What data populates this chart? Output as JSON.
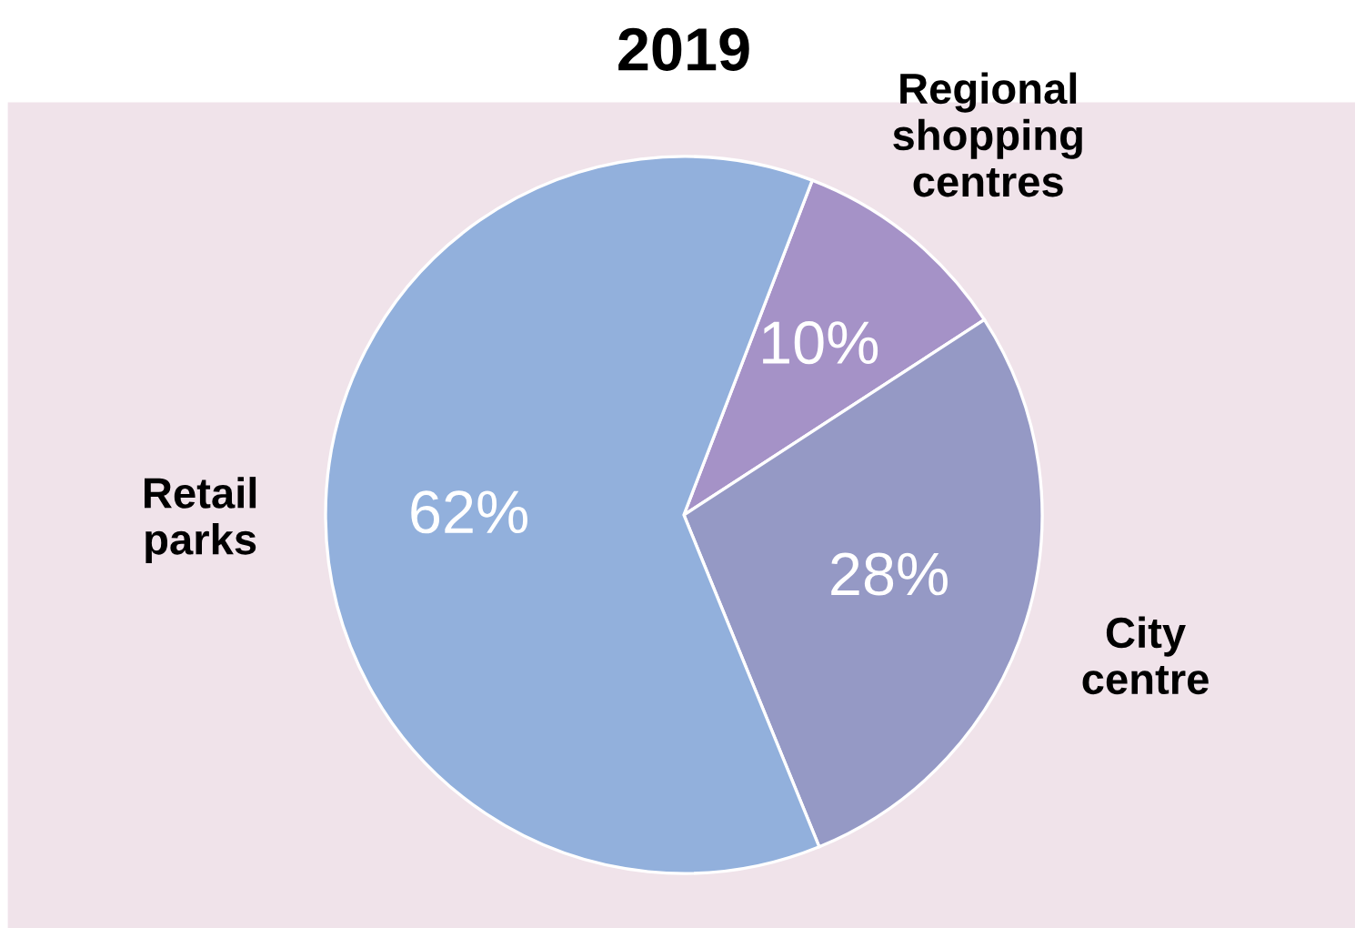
{
  "chart_data": {
    "type": "pie",
    "title": "2019",
    "categories": [
      "Regional\nshopping\ncentres",
      "City\ncentre",
      "Retail\nparks"
    ],
    "values": [
      10,
      28,
      62
    ],
    "value_labels": [
      "10%",
      "28%",
      "62%"
    ],
    "colors": [
      "#a592c7",
      "#9599c5",
      "#92b0dc"
    ]
  }
}
